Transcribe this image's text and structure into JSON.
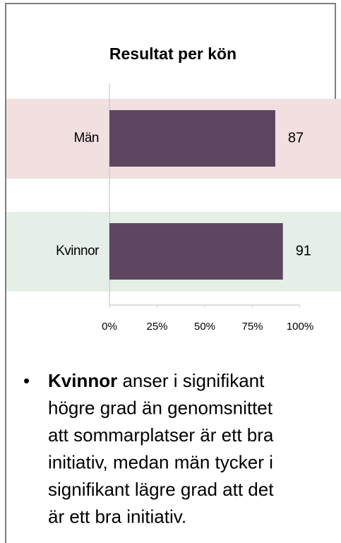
{
  "chart_data": {
    "type": "barh",
    "title": "Resultat per kön",
    "categories": [
      "Män",
      "Kvinnor"
    ],
    "values": [
      87,
      91
    ],
    "color": "#5e4660",
    "band_colors": [
      "#f2dfe0",
      "#e5efe7"
    ],
    "xlim": [
      0,
      100
    ],
    "xticks": [
      {
        "value": 0,
        "label": "0%"
      },
      {
        "value": 25,
        "label": "25%"
      },
      {
        "value": 50,
        "label": "50%"
      },
      {
        "value": 75,
        "label": "75%"
      },
      {
        "value": 100,
        "label": "100%"
      }
    ]
  },
  "bullet": {
    "bold": "Kvinnor",
    "first": " anser i signifikant",
    "lines": [
      "högre grad än genomsnittet",
      "att sommarplatser är ett bra",
      "initiativ, medan män tycker i",
      "signifikant lägre grad att det",
      "är ett bra initiativ."
    ]
  }
}
